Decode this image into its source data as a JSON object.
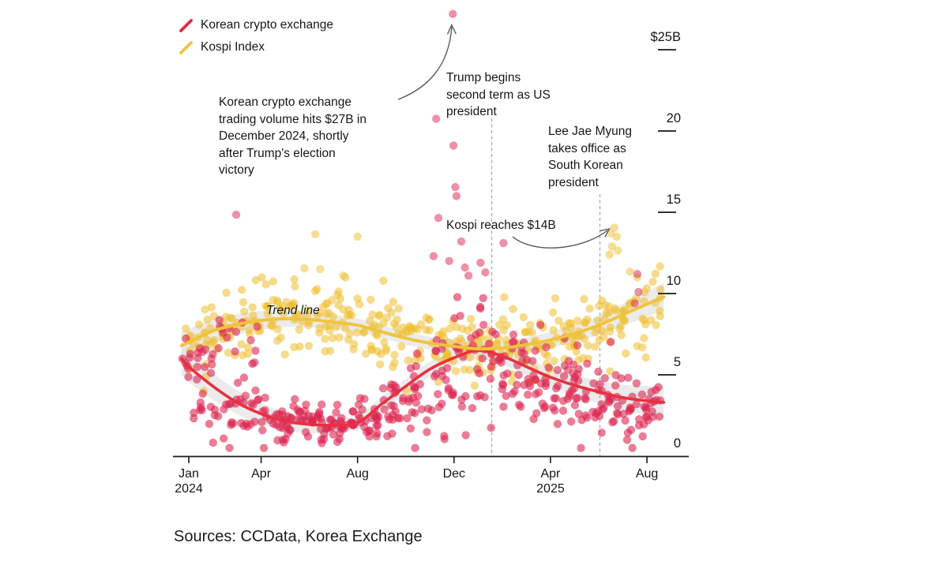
{
  "legend": [
    {
      "label": "Korean crypto exchange",
      "color": "#e12845"
    },
    {
      "label": "Kospi Index",
      "color": "#f2c246"
    }
  ],
  "source_line": "Sources: CCData, Korea Exchange",
  "seed": 20240113,
  "chart_data": {
    "type": "scatter",
    "title": "",
    "xlabel": "",
    "ylabel": "",
    "unit": "$B",
    "x_axis": {
      "unit": "months since Jan 2024",
      "range_months": [
        -0.3,
        19.7
      ],
      "ticks": [
        {
          "label": "Jan\n2024",
          "month": 0
        },
        {
          "label": "Apr",
          "month": 3
        },
        {
          "label": "Aug",
          "month": 7
        },
        {
          "label": "Dec",
          "month": 11
        },
        {
          "label": "Apr\n2025",
          "month": 15
        },
        {
          "label": "Aug",
          "month": 19
        }
      ]
    },
    "y_axis": {
      "range": [
        0,
        27.5
      ],
      "ticks": [
        {
          "label": "$25B",
          "value": 25
        },
        {
          "label": "20",
          "value": 20
        },
        {
          "label": "15",
          "value": 15
        },
        {
          "label": "10",
          "value": 10
        },
        {
          "label": "5",
          "value": 5
        },
        {
          "label": "0",
          "value": 0
        }
      ]
    },
    "annotations": {
      "crypto_spike": "Korean crypto exchange\ntrading volume hits $27B in\nDecember 2024, shortly\nafter Trump's election\nvictory",
      "trump": "Trump begins\nsecond term as US\npresident",
      "lee": "Lee Jae Myung\ntakes office as\nSouth Korean\npresident",
      "kospi_14b": "Kospi reaches $14B",
      "trend_line": "Trend line"
    },
    "events": [
      {
        "label": "Trump begins second term as US president",
        "month": 12.56
      },
      {
        "label": "Lee Jae Myung takes office as South Korean president",
        "month": 17.05
      }
    ],
    "highlight_points": [
      {
        "series": "Korean crypto exchange",
        "label": "crypto volume hits $27B",
        "month": 10.95,
        "value": 27.2
      },
      {
        "series": "Kospi Index",
        "label": "Kospi reaches $14B",
        "month": 17.65,
        "value": 14.05
      }
    ],
    "series": [
      {
        "name": "Kospi Index",
        "dot_color": "#eebd2d",
        "dot_opacity": 0.55,
        "trend_color": "#f0c33c",
        "value_floor": 4.0,
        "value_cap": 12.2,
        "band": {
          "min": 0.4,
          "max": 0.85
        },
        "trend": [
          [
            -0.3,
            6.8
          ],
          [
            0,
            7.0
          ],
          [
            1,
            7.7
          ],
          [
            2,
            8.1
          ],
          [
            3,
            8.35
          ],
          [
            4,
            8.45
          ],
          [
            5,
            8.4
          ],
          [
            6,
            8.25
          ],
          [
            7,
            8.05
          ],
          [
            8,
            7.65
          ],
          [
            9,
            7.25
          ],
          [
            10,
            6.95
          ],
          [
            11,
            6.75
          ],
          [
            12,
            6.6
          ],
          [
            13,
            6.65
          ],
          [
            14,
            6.85
          ],
          [
            15,
            7.15
          ],
          [
            16,
            7.55
          ],
          [
            17,
            8.05
          ],
          [
            18,
            8.7
          ],
          [
            19,
            9.35
          ],
          [
            19.7,
            9.8
          ]
        ],
        "monthly_gen": [
          {
            "m": -0.3,
            "w": 0.8,
            "count": 10,
            "mean": 6.9,
            "sd": 1.0
          },
          {
            "m": 0.4,
            "w": 0.6,
            "count": 12,
            "mean": 7.1,
            "sd": 1.2
          },
          {
            "m": 1,
            "count": 20,
            "mean": 7.7,
            "sd": 1.2
          },
          {
            "m": 2,
            "count": 20,
            "mean": 8.1,
            "sd": 1.2
          },
          {
            "m": 3,
            "count": 20,
            "mean": 8.4,
            "sd": 1.1
          },
          {
            "m": 4,
            "count": 20,
            "mean": 8.4,
            "sd": 1.2
          },
          {
            "m": 5,
            "count": 20,
            "mean": 8.3,
            "sd": 1.3
          },
          {
            "m": 6,
            "count": 20,
            "mean": 8.2,
            "sd": 1.2
          },
          {
            "m": 7,
            "count": 20,
            "mean": 7.9,
            "sd": 1.2
          },
          {
            "m": 8,
            "count": 20,
            "mean": 7.5,
            "sd": 1.1
          },
          {
            "m": 9,
            "count": 20,
            "mean": 7.1,
            "sd": 1.1
          },
          {
            "m": 10,
            "count": 20,
            "mean": 6.8,
            "sd": 1.0
          },
          {
            "m": 11,
            "count": 20,
            "mean": 6.6,
            "sd": 1.0
          },
          {
            "m": 12,
            "count": 20,
            "mean": 6.6,
            "sd": 1.0
          },
          {
            "m": 13,
            "count": 20,
            "mean": 6.8,
            "sd": 1.0
          },
          {
            "m": 14,
            "count": 20,
            "mean": 7.0,
            "sd": 1.1
          },
          {
            "m": 15,
            "count": 20,
            "mean": 7.3,
            "sd": 1.1
          },
          {
            "m": 16,
            "count": 20,
            "mean": 7.7,
            "sd": 1.1
          },
          {
            "m": 17,
            "count": 20,
            "mean": 8.2,
            "sd": 1.2
          },
          {
            "m": 18,
            "count": 20,
            "mean": 8.9,
            "sd": 1.2
          },
          {
            "m": 19,
            "w": 0.6,
            "count": 10,
            "mean": 9.5,
            "sd": 1.2
          }
        ],
        "outliers": [
          [
            5.25,
            13.65
          ],
          [
            7.0,
            13.5
          ],
          [
            4.8,
            11.55
          ],
          [
            5.45,
            11.5
          ],
          [
            6.4,
            11.1
          ],
          [
            17.65,
            14.05
          ],
          [
            17.5,
            13.7
          ],
          [
            17.75,
            13.5
          ],
          [
            17.55,
            12.9
          ],
          [
            17.8,
            12.65
          ],
          [
            17.45,
            12.4
          ],
          [
            18.3,
            11.35
          ],
          [
            18.6,
            11.0
          ]
        ]
      },
      {
        "name": "Korean crypto exchange",
        "dot_color": "#dc2450",
        "dot_opacity": 0.6,
        "trend_color": "#e83040",
        "value_floor": 0.5,
        "value_cap": 10.6,
        "band": {
          "min": 0.45,
          "max": 1.0
        },
        "trend": [
          [
            -0.3,
            6.0
          ],
          [
            0,
            5.5
          ],
          [
            1,
            4.3
          ],
          [
            2,
            3.3
          ],
          [
            3,
            2.6
          ],
          [
            4,
            2.15
          ],
          [
            5,
            1.95
          ],
          [
            6,
            1.9
          ],
          [
            7,
            2.05
          ],
          [
            8,
            3.2
          ],
          [
            9,
            4.3
          ],
          [
            10,
            5.35
          ],
          [
            11,
            6.05
          ],
          [
            12,
            6.5
          ],
          [
            13,
            6.15
          ],
          [
            14,
            5.5
          ],
          [
            15,
            4.85
          ],
          [
            16,
            4.35
          ],
          [
            17,
            3.95
          ],
          [
            18,
            3.6
          ],
          [
            19,
            3.4
          ],
          [
            19.7,
            3.3
          ]
        ],
        "monthly_gen": [
          {
            "m": -0.3,
            "w": 0.6,
            "count": 8,
            "mean": 5.8,
            "sd": 0.8
          },
          {
            "m": 0.3,
            "w": 0.7,
            "count": 12,
            "mean": 5.2,
            "sd": 1.1
          },
          {
            "m": 0.2,
            "w": 0.9,
            "count": 10,
            "mean": 2.4,
            "sd": 0.6
          },
          {
            "m": 1,
            "count": 14,
            "mean": 2.6,
            "sd": 0.9
          },
          {
            "m": 1.2,
            "w": 0.8,
            "count": 9,
            "mean": 7.6,
            "sd": 0.9
          },
          {
            "m": 2,
            "count": 16,
            "mean": 3.1,
            "sd": 1.1
          },
          {
            "m": 2.2,
            "w": 0.7,
            "count": 6,
            "mean": 7.3,
            "sd": 0.9
          },
          {
            "m": 3,
            "count": 22,
            "mean": 2.5,
            "sd": 0.8
          },
          {
            "m": 4,
            "count": 24,
            "mean": 2.1,
            "sd": 0.6
          },
          {
            "m": 5,
            "count": 24,
            "mean": 1.9,
            "sd": 0.55
          },
          {
            "m": 6,
            "count": 24,
            "mean": 1.95,
            "sd": 0.6
          },
          {
            "m": 7,
            "count": 24,
            "mean": 2.2,
            "sd": 0.7
          },
          {
            "m": 8,
            "count": 22,
            "mean": 2.9,
            "sd": 1.0
          },
          {
            "m": 9,
            "count": 22,
            "mean": 3.6,
            "sd": 1.5
          },
          {
            "m": 10,
            "count": 22,
            "mean": 4.6,
            "sd": 2.0
          },
          {
            "m": 11,
            "count": 20,
            "mean": 6.0,
            "sd": 2.2
          },
          {
            "m": 12,
            "count": 24,
            "mean": 6.2,
            "sd": 1.7
          },
          {
            "m": 13,
            "count": 24,
            "mean": 5.3,
            "sd": 1.6
          },
          {
            "m": 14,
            "count": 24,
            "mean": 4.6,
            "sd": 1.5
          },
          {
            "m": 15,
            "count": 24,
            "mean": 4.1,
            "sd": 1.4
          },
          {
            "m": 16,
            "count": 24,
            "mean": 3.7,
            "sd": 1.3
          },
          {
            "m": 17,
            "count": 24,
            "mean": 3.3,
            "sd": 1.2
          },
          {
            "m": 18,
            "count": 24,
            "mean": 3.0,
            "sd": 1.1
          },
          {
            "m": 19,
            "w": 0.6,
            "count": 12,
            "mean": 3.6,
            "sd": 1.4
          }
        ],
        "outliers": [
          [
            1.97,
            14.85
          ],
          [
            10.15,
            12.3
          ],
          [
            10.26,
            20.75
          ],
          [
            10.35,
            14.65
          ],
          [
            10.8,
            12.0
          ],
          [
            10.95,
            27.2
          ],
          [
            10.98,
            19.1
          ],
          [
            11.05,
            16.55
          ],
          [
            11.1,
            16.0
          ],
          [
            11.3,
            13.2
          ],
          [
            11.45,
            11.6
          ],
          [
            11.6,
            11.1
          ],
          [
            12.1,
            11.9
          ],
          [
            12.3,
            11.3
          ],
          [
            13.05,
            13.1
          ],
          [
            18.6,
            11.2
          ],
          [
            18.65,
            10.1
          ],
          [
            18.5,
            9.4
          ]
        ]
      }
    ]
  }
}
